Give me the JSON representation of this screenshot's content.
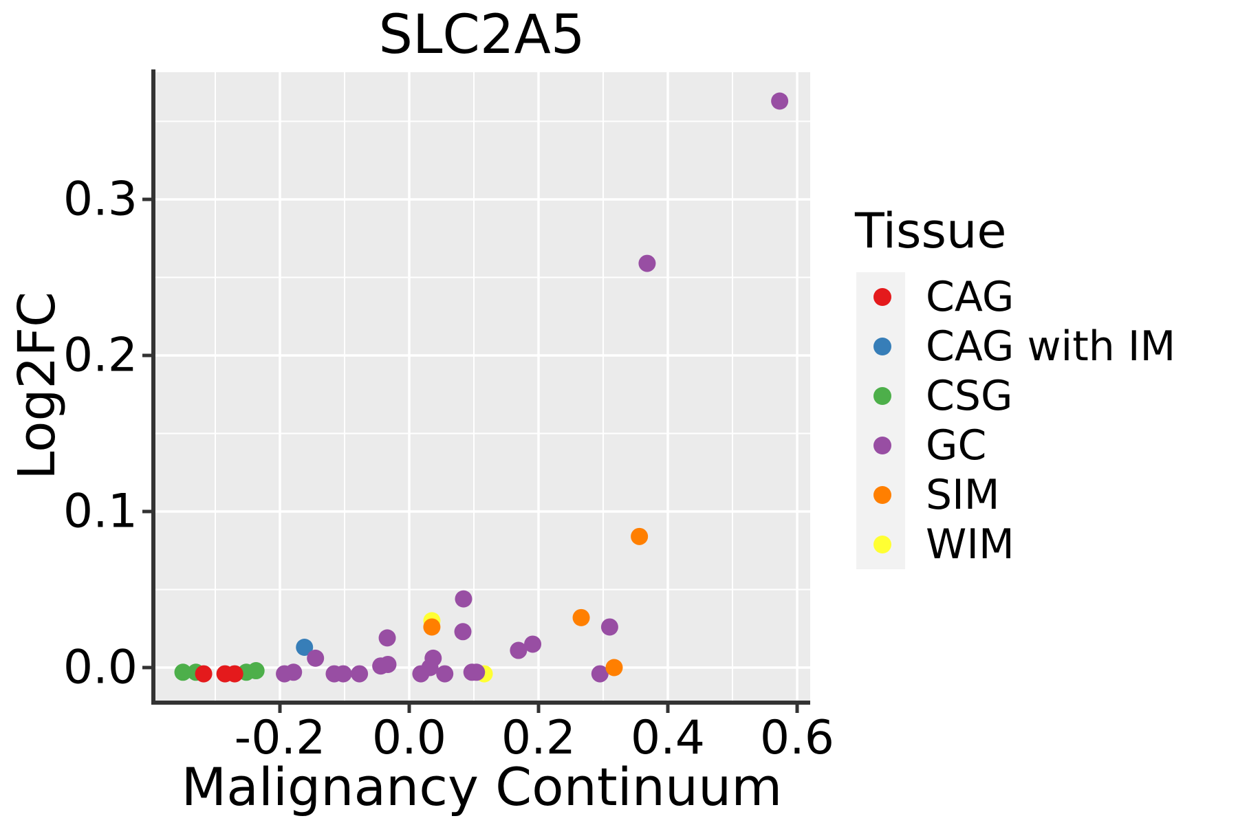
{
  "title": "SLC2A5",
  "chart_data": {
    "type": "scatter",
    "title": "SLC2A5",
    "xlabel": "Malignancy Continuum",
    "ylabel": "Log2FC",
    "xlim": [
      -0.396,
      0.62
    ],
    "ylim": [
      -0.022,
      0.382
    ],
    "x_ticks": [
      -0.2,
      0.0,
      0.2,
      0.4,
      0.6
    ],
    "x_tick_labels": [
      "-0.2",
      "0.0",
      "0.2",
      "0.4",
      "0.6"
    ],
    "y_ticks": [
      0.0,
      0.1,
      0.2,
      0.3
    ],
    "y_tick_labels": [
      "0.0",
      "0.1",
      "0.2",
      "0.3"
    ],
    "grid": "major and minor white gridlines on gray panel",
    "panel_bg": "#EBEBEB",
    "gridline_color": "#FFFFFF",
    "axis_color": "#333333",
    "marker_radius_px": 12.5,
    "legend_position": "right",
    "legend": {
      "title": "Tissue",
      "key_bg": "#F2F2F2",
      "entries": [
        {
          "label": "CAG",
          "color": "#E41A1C"
        },
        {
          "label": "CAG with IM",
          "color": "#377EB8"
        },
        {
          "label": "CSG",
          "color": "#4DAF4A"
        },
        {
          "label": "GC",
          "color": "#984EA3"
        },
        {
          "label": "SIM",
          "color": "#FF7F00"
        },
        {
          "label": "WIM",
          "color": "#FFFF33"
        }
      ]
    },
    "series": [
      {
        "name": "CSG",
        "color": "#4DAF4A",
        "points": [
          [
            -0.35,
            -0.003
          ],
          [
            -0.33,
            -0.003
          ],
          [
            -0.252,
            -0.003
          ],
          [
            -0.237,
            -0.002
          ]
        ]
      },
      {
        "name": "CAG",
        "color": "#E41A1C",
        "points": [
          [
            -0.318,
            -0.004
          ],
          [
            -0.285,
            -0.004
          ],
          [
            -0.27,
            -0.004
          ]
        ]
      },
      {
        "name": "CAG with IM",
        "color": "#377EB8",
        "points": [
          [
            -0.162,
            0.013
          ]
        ]
      },
      {
        "name": "WIM",
        "color": "#FFFF33",
        "points": [
          [
            0.035,
            0.03
          ],
          [
            0.116,
            -0.004
          ]
        ]
      },
      {
        "name": "GC",
        "color": "#984EA3",
        "points": [
          [
            -0.193,
            -0.004
          ],
          [
            -0.179,
            -0.003
          ],
          [
            -0.145,
            0.006
          ],
          [
            -0.116,
            -0.004
          ],
          [
            -0.102,
            -0.004
          ],
          [
            -0.077,
            -0.004
          ],
          [
            -0.044,
            0.001
          ],
          [
            -0.033,
            0.002
          ],
          [
            -0.034,
            0.019
          ],
          [
            0.018,
            -0.004
          ],
          [
            0.032,
            0.0
          ],
          [
            0.037,
            0.006
          ],
          [
            0.055,
            -0.004
          ],
          [
            0.083,
            0.023
          ],
          [
            0.084,
            0.044
          ],
          [
            0.097,
            -0.003
          ],
          [
            0.104,
            -0.003
          ],
          [
            0.169,
            0.011
          ],
          [
            0.191,
            0.015
          ],
          [
            0.295,
            -0.004
          ],
          [
            0.31,
            0.026
          ],
          [
            0.368,
            0.259
          ],
          [
            0.573,
            0.363
          ]
        ]
      },
      {
        "name": "SIM",
        "color": "#FF7F00",
        "points": [
          [
            0.035,
            0.026
          ],
          [
            0.266,
            0.032
          ],
          [
            0.317,
            0.0
          ],
          [
            0.356,
            0.084
          ]
        ]
      }
    ]
  }
}
